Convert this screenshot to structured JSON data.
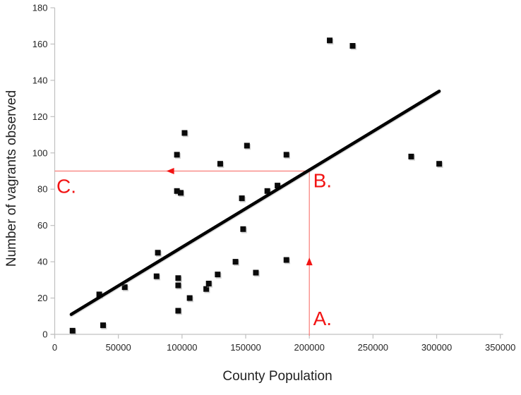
{
  "chart_data": {
    "type": "scatter",
    "title": "",
    "xlabel": "County Population",
    "ylabel": "Number of vagrants observed",
    "xlim": [
      0,
      350000
    ],
    "ylim": [
      0,
      180
    ],
    "x_ticks": [
      0,
      50000,
      100000,
      150000,
      200000,
      250000,
      300000,
      350000
    ],
    "y_ticks": [
      0,
      20,
      40,
      60,
      80,
      100,
      120,
      140,
      160,
      180
    ],
    "grid": "off",
    "legend": "none",
    "points": [
      [
        14000,
        2
      ],
      [
        35000,
        22
      ],
      [
        38000,
        5
      ],
      [
        55000,
        26
      ],
      [
        80000,
        32
      ],
      [
        81000,
        45
      ],
      [
        96000,
        79
      ],
      [
        96000,
        99
      ],
      [
        97000,
        13
      ],
      [
        97000,
        27
      ],
      [
        97000,
        31
      ],
      [
        99000,
        78
      ],
      [
        102000,
        111
      ],
      [
        106000,
        20
      ],
      [
        119000,
        25
      ],
      [
        121000,
        28
      ],
      [
        128000,
        33
      ],
      [
        130000,
        94
      ],
      [
        142000,
        40
      ],
      [
        147000,
        75
      ],
      [
        148000,
        58
      ],
      [
        151000,
        104
      ],
      [
        158000,
        34
      ],
      [
        167000,
        79
      ],
      [
        175000,
        82
      ],
      [
        182000,
        41
      ],
      [
        182000,
        99
      ],
      [
        216000,
        162
      ],
      [
        234000,
        159
      ],
      [
        280000,
        98
      ],
      [
        302000,
        94
      ]
    ],
    "trendline": {
      "x1": 13000,
      "y1": 11,
      "x2": 302000,
      "y2": 134
    },
    "annotations": {
      "guide_lines": {
        "vertical": {
          "x": 200000,
          "y_start": 0,
          "y_end": 90,
          "arrow_y": 40,
          "arrow_dir": "up"
        },
        "horizontal": {
          "y": 90,
          "x_start": 0,
          "x_end": 200000,
          "arrow_x": 91000,
          "arrow_dir": "left"
        }
      },
      "labels": [
        {
          "text": "A.",
          "x": 203000,
          "y": 5
        },
        {
          "text": "B.",
          "x": 203000,
          "y": 81
        },
        {
          "text": "C.",
          "x": 1400,
          "y": 78
        }
      ]
    },
    "colors": {
      "marker": "#0a0a0a",
      "trendline": "#000000",
      "axis": "#c0c0c0",
      "tick_text": "#262626",
      "annotation": "#f21414",
      "annotation_line": "#f87c78"
    }
  }
}
